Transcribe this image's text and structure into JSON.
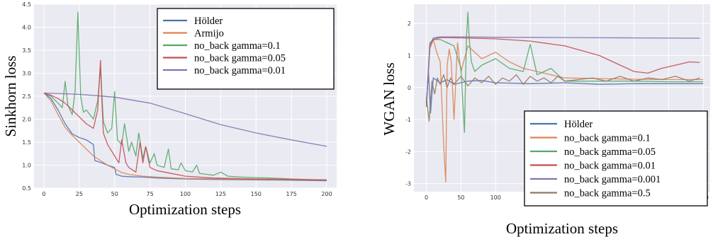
{
  "chart_data": [
    {
      "type": "line",
      "title": "",
      "xlabel": "Optimization steps",
      "ylabel": "Sinkhorn loss",
      "xlim": [
        -7,
        207
      ],
      "ylim": [
        0.5,
        4.5
      ],
      "xticks": [
        "0",
        "25",
        "50",
        "75",
        "100",
        "125",
        "150",
        "175",
        "200"
      ],
      "yticks": [
        "0.5",
        "1.0",
        "1.5",
        "2.0",
        "2.5",
        "3.0",
        "3.5",
        "4.0",
        "4.5"
      ],
      "grid": true,
      "legend": "top-right",
      "series": [
        {
          "name": "Hölder",
          "color": "#4c72b0",
          "x": [
            0,
            5,
            10,
            15,
            20,
            25,
            30,
            35,
            36,
            40,
            45,
            50,
            51,
            55,
            60,
            70,
            80,
            100,
            120,
            150,
            175,
            200
          ],
          "y": [
            2.57,
            2.45,
            2.2,
            1.9,
            1.68,
            1.6,
            1.55,
            1.45,
            1.1,
            1.06,
            1.0,
            0.95,
            0.8,
            0.76,
            0.75,
            0.74,
            0.72,
            0.7,
            0.69,
            0.68,
            0.67,
            0.66
          ]
        },
        {
          "name": "Armijo",
          "color": "#dd8452",
          "x": [
            0,
            5,
            10,
            15,
            20,
            25,
            30,
            35,
            40,
            45,
            50,
            55,
            60,
            70,
            80,
            100,
            125,
            150,
            175,
            200
          ],
          "y": [
            2.57,
            2.4,
            2.1,
            1.82,
            1.65,
            1.5,
            1.35,
            1.2,
            1.1,
            1.0,
            0.92,
            0.84,
            0.8,
            0.76,
            0.74,
            0.71,
            0.7,
            0.69,
            0.68,
            0.67
          ]
        },
        {
          "name": "no_back gamma=0.1",
          "color": "#55a868",
          "x": [
            0,
            5,
            10,
            13,
            15,
            17,
            20,
            22,
            24,
            26,
            28,
            30,
            35,
            38,
            40,
            42,
            45,
            48,
            50,
            52,
            55,
            57,
            60,
            62,
            65,
            67,
            70,
            72,
            75,
            78,
            80,
            85,
            88,
            90,
            95,
            97,
            100,
            105,
            108,
            110,
            115,
            120,
            125,
            130,
            140,
            150,
            160,
            175,
            200
          ],
          "y": [
            2.57,
            2.5,
            2.35,
            2.25,
            2.82,
            2.3,
            2.1,
            2.6,
            4.33,
            2.5,
            2.15,
            2.2,
            2.0,
            2.4,
            3.1,
            1.95,
            1.7,
            1.8,
            2.6,
            1.55,
            1.45,
            1.9,
            1.3,
            1.5,
            1.2,
            1.7,
            1.15,
            1.4,
            1.05,
            1.25,
            1.0,
            0.95,
            1.35,
            0.92,
            0.9,
            1.05,
            0.88,
            0.85,
            1.0,
            0.82,
            0.8,
            0.78,
            0.85,
            0.76,
            0.74,
            0.73,
            0.72,
            0.7,
            0.67
          ]
        },
        {
          "name": "no_back gamma=0.05",
          "color": "#c44e52",
          "x": [
            0,
            5,
            10,
            15,
            20,
            25,
            30,
            35,
            38,
            40,
            41,
            42,
            45,
            50,
            53,
            55,
            58,
            60,
            65,
            68,
            70,
            72,
            75,
            80,
            90,
            100,
            120,
            150,
            175,
            200
          ],
          "y": [
            2.57,
            2.52,
            2.45,
            2.35,
            2.2,
            2.05,
            1.9,
            1.8,
            2.2,
            3.28,
            2.4,
            1.7,
            1.45,
            1.2,
            1.05,
            1.55,
            1.05,
            0.95,
            0.85,
            1.5,
            1.05,
            1.4,
            0.95,
            0.88,
            0.82,
            0.76,
            0.72,
            0.7,
            0.69,
            0.68
          ]
        },
        {
          "name": "no_back gamma=0.01",
          "color": "#8172b2",
          "x": [
            0,
            25,
            50,
            75,
            100,
            125,
            150,
            175,
            200
          ],
          "y": [
            2.57,
            2.54,
            2.48,
            2.35,
            2.12,
            1.88,
            1.7,
            1.55,
            1.41
          ]
        }
      ]
    },
    {
      "type": "line",
      "title": "",
      "xlabel": "Optimization steps",
      "ylabel": "WGAN loss",
      "xlim": [
        -18,
        410
      ],
      "ylim": [
        -3.25,
        2.6
      ],
      "xticks": [
        "0",
        "50",
        "100",
        "150",
        "200",
        "250",
        "300",
        "350",
        "400"
      ],
      "yticks": [
        "-3",
        "-2",
        "-1",
        "0",
        "1",
        "2"
      ],
      "grid": true,
      "legend": "lower-right",
      "series": [
        {
          "name": "Hölder",
          "color": "#4c72b0",
          "x": [
            0,
            3,
            6,
            10,
            20,
            30,
            40,
            60,
            80,
            100,
            150,
            200,
            250,
            300,
            400
          ],
          "y": [
            -0.6,
            0.5,
            -0.8,
            0.3,
            0.15,
            0.25,
            0.1,
            0.2,
            0.22,
            0.15,
            0.12,
            0.15,
            0.1,
            0.12,
            0.12
          ]
        },
        {
          "name": "no_back gamma=0.1",
          "color": "#dd8452",
          "x": [
            0,
            5,
            10,
            15,
            20,
            25,
            28,
            30,
            33,
            36,
            40,
            45,
            50,
            60,
            80,
            100,
            120,
            140,
            160,
            180,
            200,
            250,
            300,
            350,
            400
          ],
          "y": [
            -0.5,
            1.2,
            1.5,
            1.1,
            0.8,
            -1.8,
            -2.95,
            0.7,
            1.2,
            0.8,
            -1.0,
            1.4,
            0.5,
            1.3,
            0.9,
            1.1,
            0.8,
            0.6,
            0.5,
            0.4,
            0.3,
            0.28,
            0.26,
            0.25,
            0.25
          ]
        },
        {
          "name": "no_back gamma=0.05",
          "color": "#55a868",
          "x": [
            0,
            5,
            10,
            20,
            30,
            40,
            50,
            55,
            58,
            60,
            62,
            65,
            70,
            80,
            100,
            120,
            140,
            150,
            160,
            180,
            200,
            250,
            300,
            350,
            400
          ],
          "y": [
            -0.6,
            1.4,
            1.5,
            1.5,
            1.4,
            1.3,
            0.6,
            -1.4,
            1.6,
            2.35,
            1.5,
            0.8,
            0.5,
            0.7,
            0.9,
            0.6,
            0.5,
            1.35,
            0.4,
            0.6,
            0.2,
            0.2,
            0.2,
            0.18,
            0.18
          ]
        },
        {
          "name": "no_back gamma=0.01",
          "color": "#c44e52",
          "x": [
            0,
            5,
            10,
            20,
            50,
            100,
            150,
            200,
            250,
            280,
            300,
            320,
            340,
            360,
            380,
            395
          ],
          "y": [
            -0.5,
            1.3,
            1.5,
            1.56,
            1.55,
            1.52,
            1.45,
            1.3,
            1.0,
            0.7,
            0.5,
            0.45,
            0.6,
            0.7,
            0.8,
            0.78
          ]
        },
        {
          "name": "no_back gamma=0.001",
          "color": "#8172b2",
          "x": [
            0,
            5,
            10,
            20,
            50,
            100,
            200,
            300,
            395
          ],
          "y": [
            -0.5,
            1.3,
            1.55,
            1.58,
            1.58,
            1.57,
            1.56,
            1.55,
            1.54
          ]
        },
        {
          "name": "no_back gamma=0.5",
          "color": "#937860",
          "x": [
            0,
            4,
            8,
            12,
            16,
            20,
            25,
            30,
            35,
            40,
            50,
            60,
            70,
            80,
            90,
            100,
            110,
            120,
            130,
            140,
            150,
            160,
            170,
            180,
            190,
            200,
            220,
            240,
            260,
            280,
            300,
            320,
            340,
            360,
            380,
            395
          ],
          "y": [
            -0.3,
            -1.05,
            0.2,
            -0.2,
            0.3,
            0.1,
            0.4,
            0.0,
            0.3,
            0.1,
            0.35,
            0.05,
            0.3,
            0.15,
            0.35,
            0.1,
            0.3,
            0.2,
            0.4,
            0.1,
            0.35,
            0.2,
            0.3,
            0.15,
            0.35,
            0.2,
            0.25,
            0.3,
            0.2,
            0.35,
            0.2,
            0.3,
            0.25,
            0.35,
            0.2,
            0.3
          ]
        }
      ]
    }
  ]
}
